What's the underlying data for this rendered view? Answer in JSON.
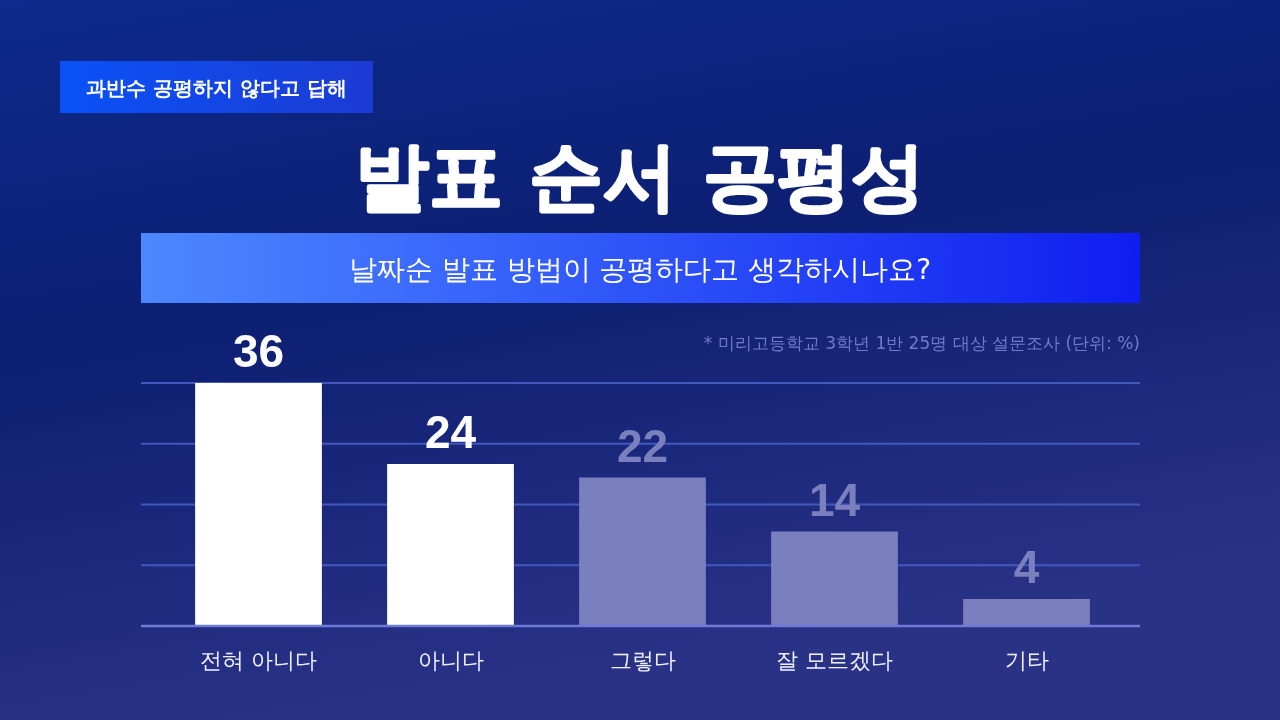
{
  "chart_data": {
    "type": "bar",
    "title": "발표 순서 공평성",
    "subtitle": "날짜순 발표 방법이 공평하다고 생각하시나요?",
    "annotations": [
      "과반수 공평하지 않다고 답해",
      "* 미리고등학교 3학년 1반 25명 대상 설문조사 (단위: %)"
    ],
    "categories": [
      "전혀 아니다",
      "아니다",
      "그렇다",
      "잘 모르겠다",
      "기타"
    ],
    "values": [
      36,
      24,
      22,
      14,
      4
    ],
    "colors": [
      "#ffffff",
      "#ffffff",
      "#7a7fbd",
      "#7a7fbd",
      "#7a7fbd"
    ],
    "ylim": [
      0,
      36
    ],
    "yticks": [
      {
        "value": 9,
        "label": null
      },
      {
        "value": 18,
        "label": null
      },
      {
        "value": 27,
        "label": null
      },
      {
        "value": 36,
        "label": null
      }
    ],
    "grid": "y",
    "tick_labels": "x",
    "data_labels": true
  }
}
